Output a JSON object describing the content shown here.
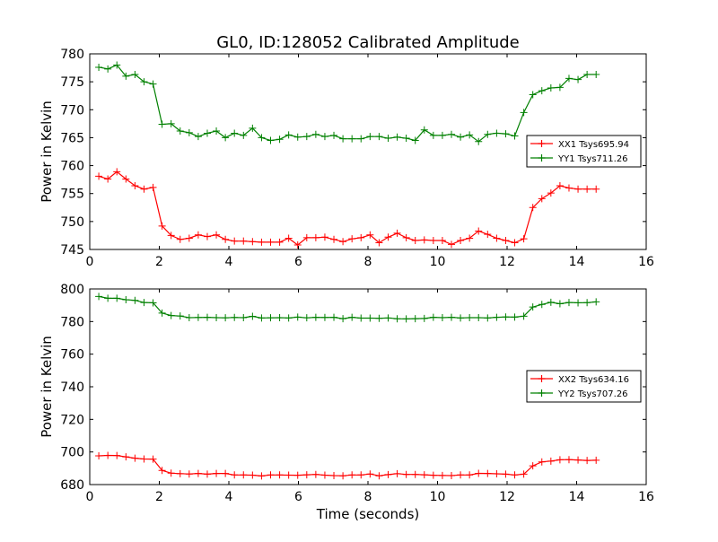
{
  "title": "GL0, ID:128052 Calibrated Amplitude",
  "colors": {
    "xx": "#ff0000",
    "yy": "#008000",
    "axis": "#000000",
    "background": "#ffffff"
  },
  "chart_data": [
    {
      "type": "line",
      "ylabel": "Power in Kelvin",
      "xlabel": "",
      "xlim": [
        0,
        16
      ],
      "ylim": [
        745,
        780
      ],
      "x_ticks": [
        0,
        2,
        4,
        6,
        8,
        10,
        12,
        14,
        16
      ],
      "y_ticks": [
        745,
        750,
        755,
        760,
        765,
        770,
        775,
        780
      ],
      "grid": false,
      "legend_position": "center-right",
      "x": [
        0.26,
        0.52,
        0.78,
        1.04,
        1.3,
        1.56,
        1.82,
        2.08,
        2.34,
        2.6,
        2.86,
        3.12,
        3.38,
        3.64,
        3.9,
        4.16,
        4.42,
        4.68,
        4.94,
        5.2,
        5.46,
        5.72,
        5.98,
        6.24,
        6.5,
        6.76,
        7.02,
        7.28,
        7.54,
        7.8,
        8.06,
        8.32,
        8.58,
        8.84,
        9.1,
        9.36,
        9.62,
        9.88,
        10.14,
        10.4,
        10.66,
        10.92,
        11.18,
        11.44,
        11.7,
        11.96,
        12.22,
        12.48,
        12.74,
        13.0,
        13.26,
        13.52,
        13.78,
        14.04,
        14.3,
        14.56
      ],
      "series": [
        {
          "name": "XX1 Tsys695.94",
          "color": "#ff0000",
          "values": [
            758.1,
            757.6,
            758.9,
            757.6,
            756.4,
            755.8,
            756.1,
            749.2,
            747.5,
            746.8,
            747.0,
            747.6,
            747.3,
            747.6,
            746.8,
            746.5,
            746.5,
            746.4,
            746.3,
            746.3,
            746.3,
            747.0,
            745.8,
            747.1,
            747.1,
            747.2,
            746.8,
            746.4,
            746.9,
            747.1,
            747.6,
            746.2,
            747.2,
            747.9,
            747.1,
            746.6,
            746.7,
            746.6,
            746.6,
            745.9,
            746.6,
            747.0,
            748.3,
            747.7,
            747.0,
            746.6,
            746.2,
            746.9,
            752.5,
            754.1,
            755.1,
            756.4,
            756.0,
            755.8,
            755.8,
            755.8
          ]
        },
        {
          "name": "YY1 Tsys711.26",
          "color": "#008000",
          "values": [
            777.6,
            777.3,
            778.0,
            776.0,
            776.3,
            775.0,
            774.6,
            767.4,
            767.5,
            766.2,
            765.9,
            765.2,
            765.8,
            766.2,
            765.0,
            765.8,
            765.4,
            766.7,
            765.0,
            764.5,
            764.7,
            765.5,
            765.1,
            765.2,
            765.6,
            765.2,
            765.4,
            764.8,
            764.8,
            764.8,
            765.2,
            765.2,
            764.9,
            765.1,
            764.9,
            764.5,
            766.4,
            765.4,
            765.4,
            765.6,
            765.1,
            765.5,
            764.3,
            765.6,
            765.8,
            765.7,
            765.3,
            769.5,
            772.7,
            773.4,
            773.9,
            774.0,
            775.6,
            775.4,
            776.3,
            776.3
          ]
        }
      ]
    },
    {
      "type": "line",
      "ylabel": "Power in Kelvin",
      "xlabel": "Time (seconds)",
      "xlim": [
        0,
        16
      ],
      "ylim": [
        680,
        800
      ],
      "x_ticks": [
        0,
        2,
        4,
        6,
        8,
        10,
        12,
        14,
        16
      ],
      "y_ticks": [
        680,
        700,
        720,
        740,
        760,
        780,
        800
      ],
      "grid": false,
      "legend_position": "center-right",
      "x": [
        0.26,
        0.52,
        0.78,
        1.04,
        1.3,
        1.56,
        1.82,
        2.08,
        2.34,
        2.6,
        2.86,
        3.12,
        3.38,
        3.64,
        3.9,
        4.16,
        4.42,
        4.68,
        4.94,
        5.2,
        5.46,
        5.72,
        5.98,
        6.24,
        6.5,
        6.76,
        7.02,
        7.28,
        7.54,
        7.8,
        8.06,
        8.32,
        8.58,
        8.84,
        9.1,
        9.36,
        9.62,
        9.88,
        10.14,
        10.4,
        10.66,
        10.92,
        11.18,
        11.44,
        11.7,
        11.96,
        12.22,
        12.48,
        12.74,
        13.0,
        13.26,
        13.52,
        13.78,
        14.04,
        14.3,
        14.56
      ],
      "series": [
        {
          "name": "XX2 Tsys634.16",
          "color": "#ff0000",
          "values": [
            697.6,
            697.9,
            697.8,
            697.0,
            696.2,
            695.7,
            695.6,
            688.7,
            687.0,
            686.7,
            686.5,
            686.8,
            686.4,
            686.8,
            686.8,
            685.9,
            685.9,
            685.8,
            685.3,
            685.9,
            685.9,
            685.8,
            685.7,
            686.0,
            686.2,
            685.8,
            685.5,
            685.4,
            685.9,
            685.9,
            686.5,
            685.4,
            686.1,
            686.7,
            686.2,
            686.2,
            686.0,
            685.7,
            685.6,
            685.5,
            685.9,
            685.9,
            686.9,
            686.8,
            686.6,
            686.4,
            685.9,
            686.4,
            691.5,
            693.9,
            694.4,
            695.2,
            695.3,
            695.1,
            694.8,
            694.9
          ]
        },
        {
          "name": "YY2 Tsys707.26",
          "color": "#008000",
          "values": [
            795.4,
            794.3,
            794.3,
            793.4,
            793.0,
            791.7,
            791.5,
            785.2,
            783.7,
            783.4,
            782.4,
            782.5,
            782.6,
            782.4,
            782.3,
            782.5,
            782.4,
            783.2,
            782.2,
            782.3,
            782.4,
            782.2,
            782.7,
            782.3,
            782.6,
            782.5,
            782.6,
            781.8,
            782.6,
            782.1,
            782.1,
            782.0,
            782.2,
            781.7,
            781.6,
            781.8,
            781.9,
            782.6,
            782.4,
            782.6,
            782.2,
            782.4,
            782.4,
            782.2,
            782.6,
            782.8,
            782.7,
            783.3,
            788.9,
            790.5,
            791.8,
            790.9,
            791.7,
            791.5,
            791.6,
            792.1
          ]
        }
      ]
    }
  ]
}
